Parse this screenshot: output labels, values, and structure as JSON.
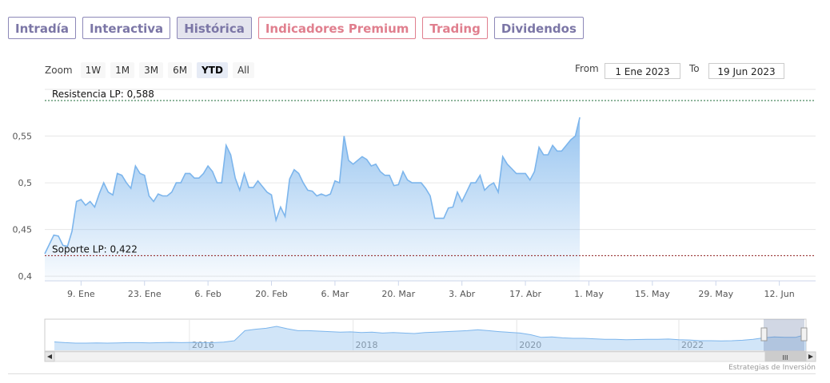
{
  "tabs": [
    {
      "label": "Intradía",
      "style": "normal"
    },
    {
      "label": "Interactiva",
      "style": "normal"
    },
    {
      "label": "Histórica",
      "style": "active"
    },
    {
      "label": "Indicadores Premium",
      "style": "red"
    },
    {
      "label": "Trading",
      "style": "red"
    },
    {
      "label": "Dividendos",
      "style": "normal"
    }
  ],
  "zoom": {
    "label": "Zoom",
    "buttons": [
      "1W",
      "1M",
      "3M",
      "6M",
      "YTD",
      "All"
    ],
    "selected": "YTD"
  },
  "range": {
    "from_label": "From",
    "from_value": "1 Ene 2023",
    "to_label": "To",
    "to_value": "19 Jun 2023"
  },
  "credit": "Estrategias de Inversión",
  "colors": {
    "line": "#7cb5ec",
    "fill_top": "#7cb5ec",
    "resistance": "#1e6b3a",
    "support": "#8b1a1a",
    "tab_border": "#8d88b8",
    "tab_red": "#e07f8e"
  },
  "chart_data": {
    "type": "area",
    "ylim": [
      0.395,
      0.6
    ],
    "yticks": [
      {
        "v": 0.4,
        "label": "0,4"
      },
      {
        "v": 0.45,
        "label": "0,45"
      },
      {
        "v": 0.5,
        "label": "0,5"
      },
      {
        "v": 0.55,
        "label": "0,55"
      }
    ],
    "xlim": [
      0,
      170
    ],
    "xticks": [
      {
        "d": 8,
        "label": "9. Ene"
      },
      {
        "d": 22,
        "label": "23. Ene"
      },
      {
        "d": 36,
        "label": "6. Feb"
      },
      {
        "d": 50,
        "label": "20. Feb"
      },
      {
        "d": 64,
        "label": "6. Mar"
      },
      {
        "d": 78,
        "label": "20. Mar"
      },
      {
        "d": 92,
        "label": "3. Abr"
      },
      {
        "d": 106,
        "label": "17. Abr"
      },
      {
        "d": 120,
        "label": "1. May"
      },
      {
        "d": 134,
        "label": "15. May"
      },
      {
        "d": 148,
        "label": "29. May"
      },
      {
        "d": 162,
        "label": "12. Jun"
      }
    ],
    "resistance": {
      "value": 0.588,
      "label": "Resistencia LP: 0,588"
    },
    "support": {
      "value": 0.422,
      "label": "Soporte LP: 0,422"
    },
    "series": [
      {
        "points": [
          [
            0,
            0.424
          ],
          [
            2,
            0.444
          ],
          [
            3,
            0.443
          ],
          [
            4,
            0.433
          ],
          [
            5,
            0.432
          ],
          [
            6,
            0.448
          ],
          [
            7,
            0.48
          ],
          [
            8,
            0.482
          ],
          [
            9,
            0.476
          ],
          [
            10,
            0.48
          ],
          [
            11,
            0.474
          ],
          [
            12,
            0.488
          ],
          [
            13,
            0.5
          ],
          [
            14,
            0.49
          ],
          [
            15,
            0.487
          ],
          [
            16,
            0.51
          ],
          [
            17,
            0.508
          ],
          [
            18,
            0.5
          ],
          [
            19,
            0.494
          ],
          [
            20,
            0.518
          ],
          [
            21,
            0.51
          ],
          [
            22,
            0.508
          ],
          [
            23,
            0.486
          ],
          [
            24,
            0.48
          ],
          [
            25,
            0.488
          ],
          [
            26,
            0.486
          ],
          [
            27,
            0.486
          ],
          [
            28,
            0.49
          ],
          [
            29,
            0.5
          ],
          [
            30,
            0.5
          ],
          [
            31,
            0.51
          ],
          [
            32,
            0.51
          ],
          [
            33,
            0.505
          ],
          [
            34,
            0.505
          ],
          [
            35,
            0.51
          ],
          [
            36,
            0.518
          ],
          [
            37,
            0.512
          ],
          [
            38,
            0.5
          ],
          [
            39,
            0.5
          ],
          [
            40,
            0.54
          ],
          [
            41,
            0.53
          ],
          [
            42,
            0.505
          ],
          [
            43,
            0.492
          ],
          [
            44,
            0.51
          ],
          [
            45,
            0.495
          ],
          [
            46,
            0.495
          ],
          [
            47,
            0.502
          ],
          [
            48,
            0.496
          ],
          [
            49,
            0.49
          ],
          [
            50,
            0.487
          ],
          [
            51,
            0.46
          ],
          [
            52,
            0.474
          ],
          [
            53,
            0.464
          ],
          [
            54,
            0.504
          ],
          [
            55,
            0.514
          ],
          [
            56,
            0.51
          ],
          [
            57,
            0.5
          ],
          [
            58,
            0.492
          ],
          [
            59,
            0.491
          ],
          [
            60,
            0.486
          ],
          [
            61,
            0.488
          ],
          [
            62,
            0.486
          ],
          [
            63,
            0.488
          ],
          [
            64,
            0.502
          ],
          [
            65,
            0.5
          ],
          [
            66,
            0.55
          ],
          [
            67,
            0.524
          ],
          [
            68,
            0.52
          ],
          [
            69,
            0.524
          ],
          [
            70,
            0.528
          ],
          [
            71,
            0.525
          ],
          [
            72,
            0.518
          ],
          [
            73,
            0.52
          ],
          [
            74,
            0.512
          ],
          [
            75,
            0.508
          ],
          [
            76,
            0.508
          ],
          [
            77,
            0.497
          ],
          [
            78,
            0.498
          ],
          [
            79,
            0.512
          ],
          [
            80,
            0.503
          ],
          [
            81,
            0.5
          ],
          [
            82,
            0.5
          ],
          [
            83,
            0.5
          ],
          [
            84,
            0.494
          ],
          [
            85,
            0.486
          ],
          [
            86,
            0.462
          ],
          [
            87,
            0.462
          ],
          [
            88,
            0.462
          ],
          [
            89,
            0.473
          ],
          [
            90,
            0.474
          ],
          [
            91,
            0.49
          ],
          [
            92,
            0.48
          ],
          [
            93,
            0.49
          ],
          [
            94,
            0.5
          ],
          [
            95,
            0.5
          ],
          [
            96,
            0.508
          ],
          [
            97,
            0.492
          ],
          [
            98,
            0.497
          ],
          [
            99,
            0.5
          ],
          [
            100,
            0.49
          ],
          [
            101,
            0.528
          ],
          [
            102,
            0.52
          ],
          [
            103,
            0.515
          ],
          [
            104,
            0.51
          ],
          [
            105,
            0.51
          ],
          [
            106,
            0.51
          ],
          [
            107,
            0.503
          ],
          [
            108,
            0.512
          ],
          [
            109,
            0.538
          ],
          [
            110,
            0.53
          ],
          [
            111,
            0.53
          ],
          [
            112,
            0.54
          ],
          [
            113,
            0.534
          ],
          [
            114,
            0.534
          ],
          [
            115,
            0.54
          ],
          [
            116,
            0.546
          ],
          [
            117,
            0.55
          ],
          [
            118,
            0.57
          ]
        ]
      }
    ]
  },
  "navigator": {
    "xticks": [
      {
        "f": 0.19,
        "label": "2016"
      },
      {
        "f": 0.405,
        "label": "2018"
      },
      {
        "f": 0.62,
        "label": "2020"
      },
      {
        "f": 0.833,
        "label": "2022"
      }
    ],
    "series": [
      0.25,
      0.22,
      0.2,
      0.2,
      0.21,
      0.2,
      0.21,
      0.22,
      0.22,
      0.21,
      0.22,
      0.23,
      0.22,
      0.23,
      0.22,
      0.22,
      0.24,
      0.3,
      0.72,
      0.78,
      0.82,
      0.9,
      0.8,
      0.72,
      0.72,
      0.7,
      0.68,
      0.66,
      0.67,
      0.64,
      0.66,
      0.62,
      0.64,
      0.62,
      0.6,
      0.64,
      0.66,
      0.68,
      0.7,
      0.72,
      0.76,
      0.72,
      0.68,
      0.65,
      0.62,
      0.55,
      0.44,
      0.46,
      0.42,
      0.4,
      0.4,
      0.38,
      0.36,
      0.36,
      0.34,
      0.35,
      0.36,
      0.36,
      0.37,
      0.34,
      0.33,
      0.3,
      0.3,
      0.29,
      0.3,
      0.32,
      0.36,
      0.42,
      0.46,
      0.44,
      0.44,
      0.56
    ]
  }
}
